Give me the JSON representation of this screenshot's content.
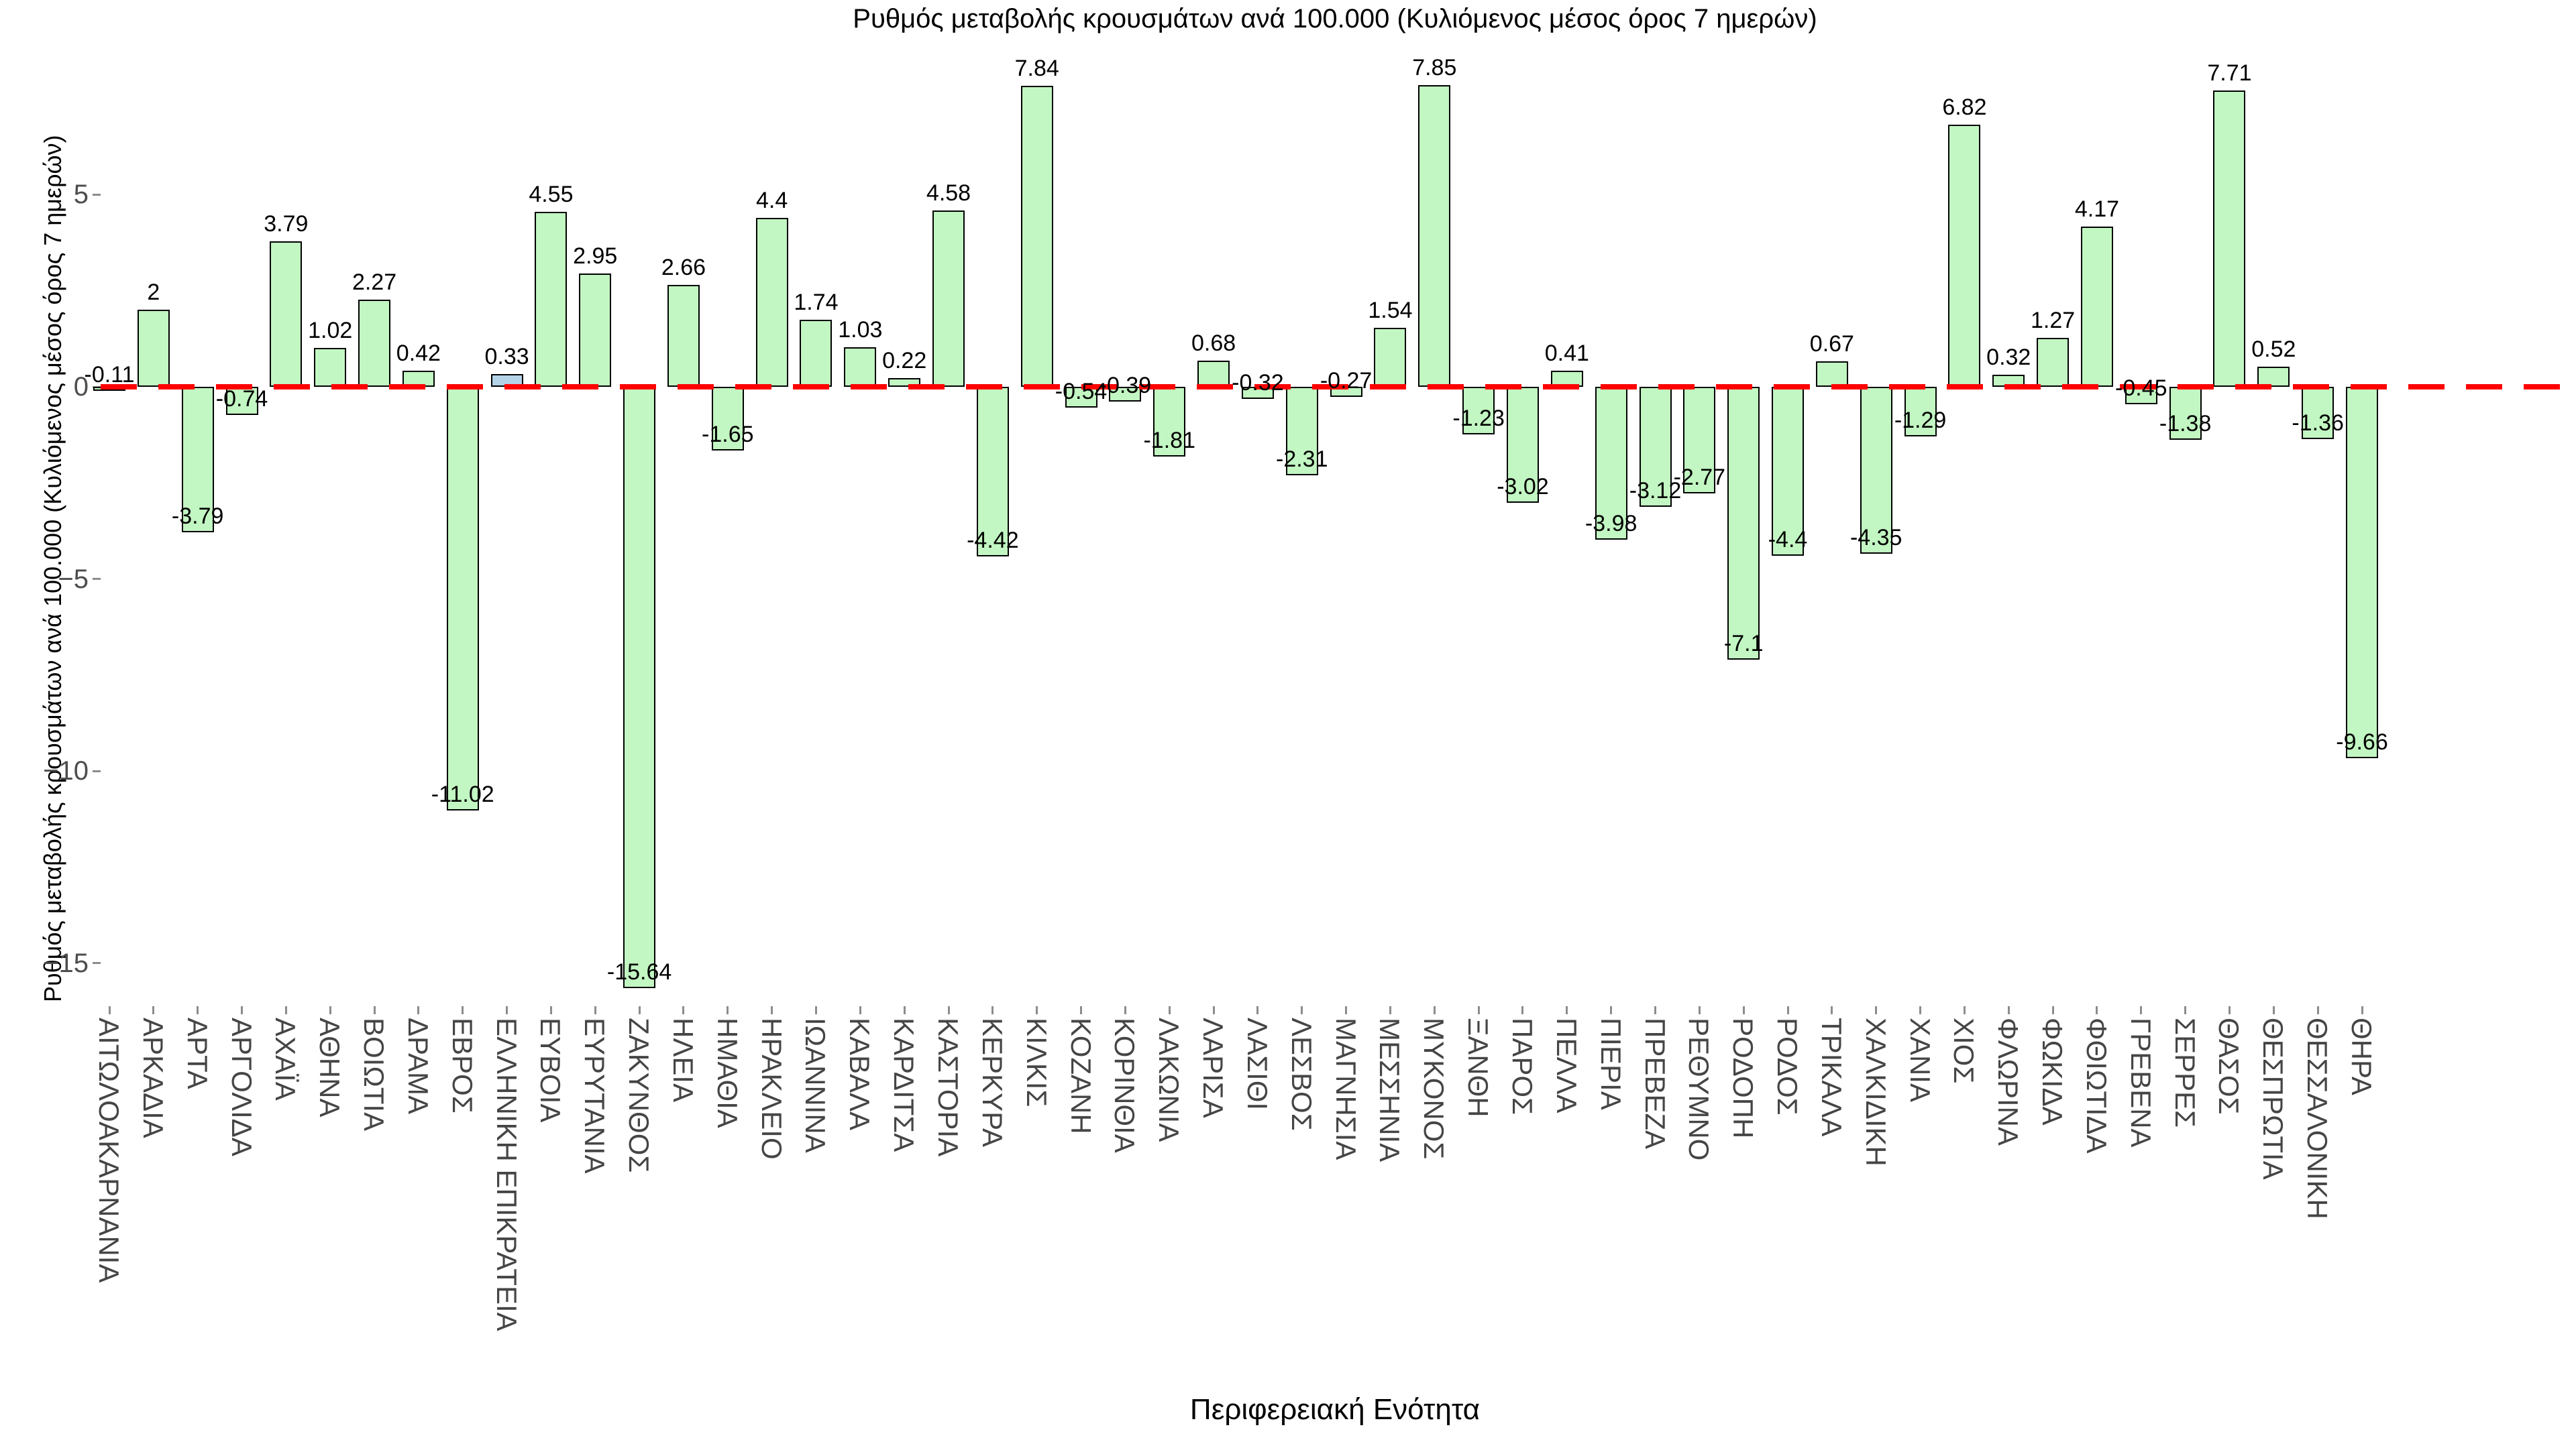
{
  "chart_data": {
    "type": "bar",
    "title": "Ρυθμός μεταβολής κρουσμάτων ανά 100.000 (Κυλιόμενος μέσος όρος 7 ημερών)",
    "xlabel": "Περιφερειακή Ενότητα",
    "ylabel": "Ρυθμός μεταβολής κρουσμάτων ανά 100.000 (Κυλιόμενος μέσος όρος 7 ημερών)",
    "ylim": [
      -16.2,
      9.0
    ],
    "grid": false,
    "legend": null,
    "yticks": [
      {
        "label": "5",
        "value": 5
      },
      {
        "label": "0",
        "value": 0
      },
      {
        "label": "−5",
        "value": -5
      },
      {
        "label": "−10",
        "value": -10
      },
      {
        "label": "−15",
        "value": -15
      }
    ],
    "zero_line": {
      "value": 0,
      "style": "dashed",
      "color": "#ff0000"
    },
    "bar_colors": {
      "default": "#c2f6c2",
      "highlight": "#b4d2e8",
      "edge": "#000000"
    },
    "highlight_category": "ΕΛΛΗΝΙΚΗ ΕΠΙΚΡΑΤΕΙΑ",
    "categories": [
      "ΑΙΤΩΛΟΑΚΑΡΝΑΝΙΑ",
      "ΑΡΚΑΔΙΑ",
      "ΑΡΤΑ",
      "ΑΡΓΟΛΙΔΑ",
      "ΑΧΑΪΑ",
      "ΑΘΗΝΑ",
      "ΒΟΙΩΤΙΑ",
      "ΔΡΑΜΑ",
      "ΕΒΡΟΣ",
      "ΕΛΛΗΝΙΚΗ ΕΠΙΚΡΑΤΕΙΑ",
      "ΕΥΒΟΙΑ",
      "ΕΥΡΥΤΑΝΙΑ",
      "ΖΑΚΥΝΘΟΣ",
      "ΗΛΕΙΑ",
      "ΗΜΑΘΙΑ",
      "ΗΡΑΚΛΕΙΟ",
      "ΙΩΑΝΝΙΝΑ",
      "ΚΑΒΑΛΑ",
      "ΚΑΡΔΙΤΣΑ",
      "ΚΑΣΤΟΡΙΑ",
      "ΚΕΡΚΥΡΑ",
      "ΚΙΛΚΙΣ",
      "ΚΟΖΑΝΗ",
      "ΚΟΡΙΝΘΙΑ",
      "ΛΑΚΩΝΙΑ",
      "ΛΑΡΙΣΑ",
      "ΛΑΣΙΘΙ",
      "ΛΕΣΒΟΣ",
      "ΜΑΓΝΗΣΙΑ",
      "ΜΕΣΣΗΝΙΑ",
      "ΜΥΚΟΝΟΣ",
      "ΞΑΝΘΗ",
      "ΠΑΡΟΣ",
      "ΠΕΛΛΑ",
      "ΠΙΕΡΙΑ",
      "ΠΡΕΒΕΖΑ",
      "ΡΕΘΥΜΝΟ",
      "ΡΟΔΟΠΗ",
      "ΡΟΔΟΣ",
      "ΤΡΙΚΑΛΑ",
      "ΧΑΛΚΙΔΙΚΗ",
      "ΧΑΝΙΑ",
      "ΧΙΟΣ",
      "ΦΛΩΡΙΝΑ",
      "ΦΩΚΙΔΑ",
      "ΦΘΙΩΤΙΔΑ",
      "ΓΡΕΒΕΝΑ",
      "ΣΕΡΡΕΣ",
      "ΘΑΣΟΣ",
      "ΘΕΣΠΡΩΤΙΑ",
      "ΘΕΣΣΑΛΟΝΙΚΗ",
      "ΘΗΡΑ"
    ],
    "values": [
      -0.11,
      2,
      -3.79,
      -0.74,
      3.79,
      1.02,
      2.27,
      0.42,
      -11.02,
      0.33,
      4.55,
      2.95,
      -15.64,
      2.66,
      -1.65,
      4.4,
      1.74,
      1.03,
      0.22,
      4.58,
      -4.42,
      7.84,
      -0.54,
      -0.39,
      -1.81,
      0.68,
      -0.32,
      -2.31,
      -0.27,
      1.54,
      7.85,
      -1.23,
      -3.02,
      0.41,
      -3.98,
      -3.12,
      -2.77,
      -7.1,
      -4.4,
      0.67,
      -4.35,
      -1.29,
      6.82,
      0.32,
      1.27,
      4.17,
      -0.45,
      -1.38,
      7.71,
      0.52,
      -1.36,
      -9.66
    ],
    "value_labels": [
      "-0.11",
      "2",
      "-3.79",
      "-0.74",
      "3.79",
      "1.02",
      "2.27",
      "0.42",
      "-11.02",
      "0.33",
      "4.55",
      "2.95",
      "-15.64",
      "2.66",
      "-1.65",
      "4.4",
      "1.74",
      "1.03",
      "0.22",
      "4.58",
      "-4.42",
      "7.84",
      "-0.54",
      "-0.39",
      "-1.81",
      "0.68",
      "-0.32",
      "-2.31",
      "-0.27",
      "1.54",
      "7.85",
      "-1.23",
      "-3.02",
      "0.41",
      "-3.98",
      "-3.12",
      "-2.77",
      "-7.1",
      "-4.4",
      "0.67",
      "-4.35",
      "-1.29",
      "6.82",
      "0.32",
      "1.27",
      "4.17",
      "-0.45",
      "-1.38",
      "7.71",
      "0.52",
      "-1.36",
      "-9.66"
    ]
  },
  "colors": {
    "title_text": "#000000",
    "axis_label_text": "#000000",
    "tick_label_text": "#4d4d4d",
    "category_label_text": "#454545",
    "tick_mark": "#8c8c8c",
    "background": "#ffffff"
  }
}
